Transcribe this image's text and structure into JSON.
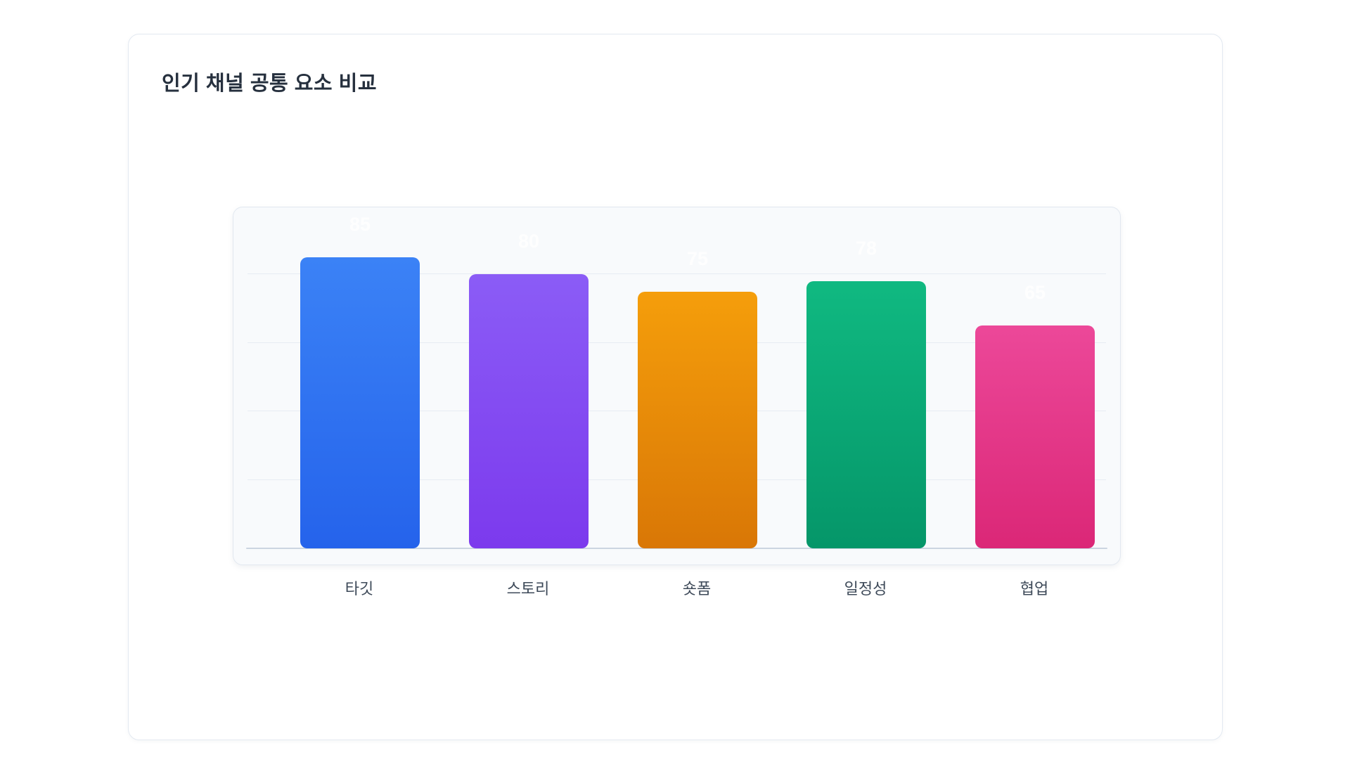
{
  "page": {
    "title": "인기 채널 공통 요소 비교"
  },
  "chart_data": {
    "type": "bar",
    "title": "인기 채널 공통 요소 비교",
    "categories": [
      "타깃",
      "스토리",
      "숏폼",
      "일정성",
      "협업"
    ],
    "values": [
      85,
      80,
      75,
      78,
      65
    ],
    "xlabel": "",
    "ylabel": "",
    "ylim": [
      0,
      100
    ],
    "gridline_values": [
      20,
      40,
      60,
      80
    ],
    "grid": true,
    "legend": false,
    "value_labels_shown": true,
    "value_label_color": "#ffffff",
    "axis_label_color": "#3e4a59",
    "baseline_color": "#cbd5e1",
    "panel_background": "#f8fafc",
    "panel_border": "#e2e8f0",
    "bar_gradients": [
      {
        "top": "#3b82f6",
        "bottom": "#2563eb"
      },
      {
        "top": "#8b5cf6",
        "bottom": "#7c3aed"
      },
      {
        "top": "#f59e0b",
        "bottom": "#d97706"
      },
      {
        "top": "#10b981",
        "bottom": "#059669"
      },
      {
        "top": "#ec4899",
        "bottom": "#db2777"
      }
    ]
  }
}
